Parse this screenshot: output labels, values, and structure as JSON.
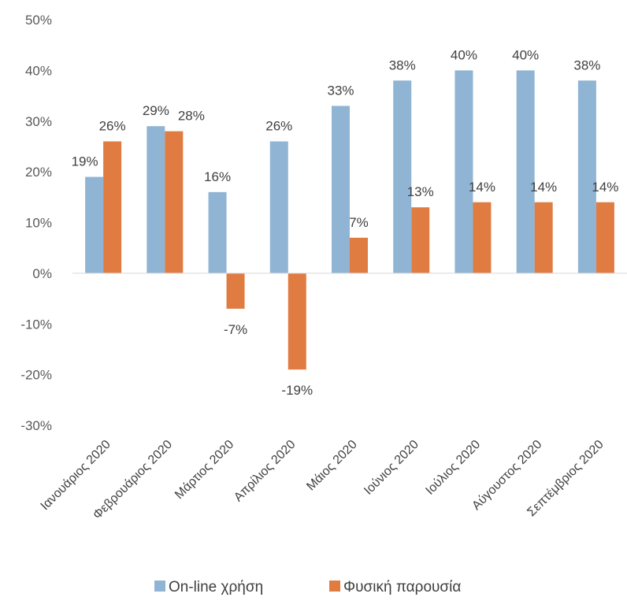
{
  "chart_data": {
    "type": "bar",
    "categories": [
      "Ιανουάριος 2020",
      "Φεβρουάριος 2020",
      "Μάρτιος 2020",
      "Απρίλιος 2020",
      "Μάιος 2020",
      "Ιούνιος 2020",
      "Ιούλιος 2020",
      "Αύγουστος 2020",
      "Σεπτέμβριος 2020"
    ],
    "series": [
      {
        "name": "On-line χρήση",
        "color": "#8fb4d4",
        "values": [
          19,
          29,
          16,
          26,
          33,
          38,
          40,
          40,
          38
        ],
        "labels": [
          "19%",
          "29%",
          "16%",
          "26%",
          "33%",
          "38%",
          "40%",
          "40%",
          "38%"
        ]
      },
      {
        "name": "Φυσική παρουσία",
        "color": "#e07c42",
        "values": [
          26,
          28,
          -7,
          -19,
          7,
          13,
          14,
          14,
          14
        ],
        "labels": [
          "26%",
          "28%",
          "-7%",
          "-19%",
          "7%",
          "13%",
          "14%",
          "14%",
          "14%"
        ]
      }
    ],
    "yticks": [
      50,
      40,
      30,
      20,
      10,
      0,
      -10,
      -20,
      -30
    ],
    "ytick_labels": [
      "50%",
      "40%",
      "30%",
      "20%",
      "10%",
      "0%",
      "-10%",
      "-20%",
      "-30%"
    ],
    "ylim": [
      -30,
      50
    ],
    "grid": false,
    "legend_position": "bottom"
  }
}
